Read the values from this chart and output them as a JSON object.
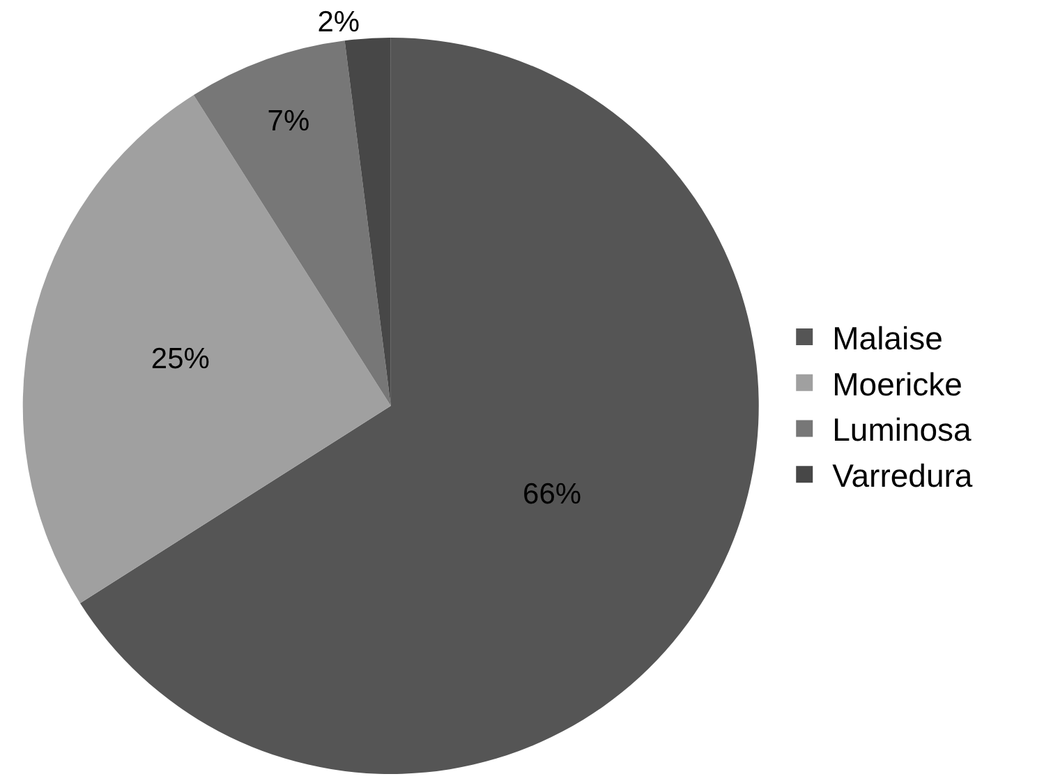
{
  "chart_data": {
    "type": "pie",
    "categories": [
      "Malaise",
      "Moericke",
      "Luminosa",
      "Varredura"
    ],
    "values": [
      66,
      25,
      7,
      2
    ],
    "colors": [
      "#555555",
      "#a0a0a0",
      "#777777",
      "#474747"
    ],
    "value_labels": [
      "66%",
      "25%",
      "7%",
      "2%"
    ],
    "legend": "right"
  }
}
